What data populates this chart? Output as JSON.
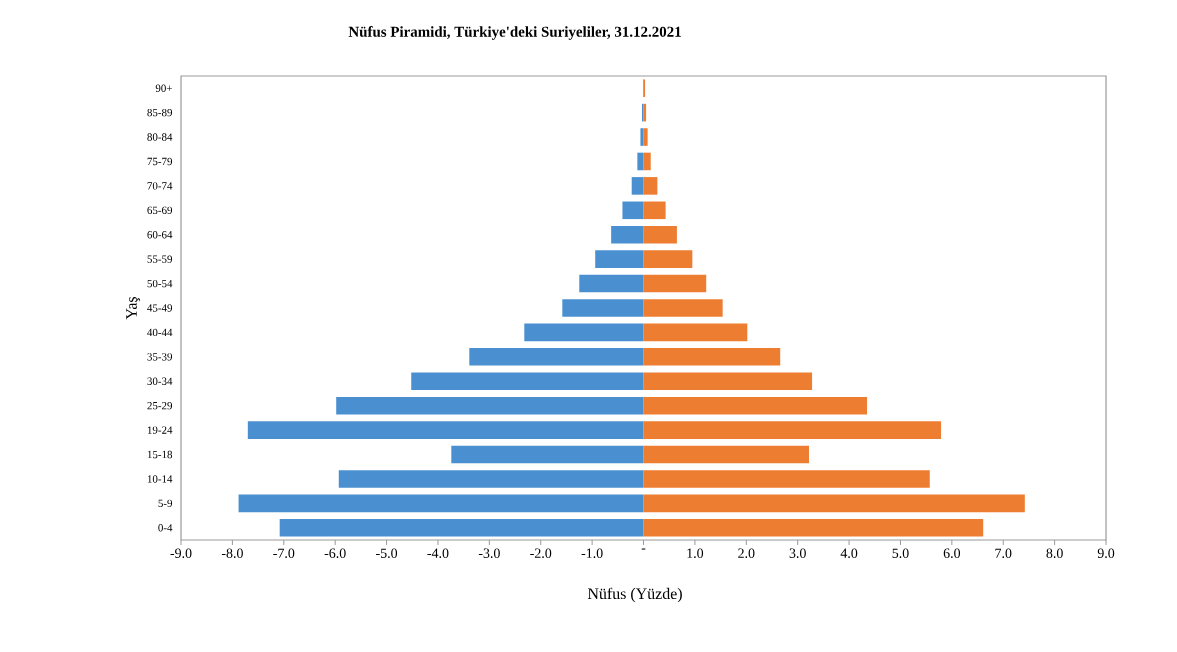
{
  "chart_data": {
    "type": "bar",
    "stacked": true,
    "orientation": "horizontal",
    "title": "Nüfus Piramidi, Türkiye'deki Suriyeliler, 31.12.2021",
    "xlabel": "Nüfus (Yüzde)",
    "ylabel": "Yaş",
    "categories": [
      "90+",
      "85-89",
      "80-84",
      "75-79",
      "70-74",
      "65-69",
      "60-64",
      "55-59",
      "50-54",
      "45-49",
      "40-44",
      "35-39",
      "30-34",
      "25-29",
      "19-24",
      "15-18",
      "10-14",
      "5-9",
      "0-4"
    ],
    "series": [
      {
        "color": "#4a90d0",
        "values": [
          -0.01,
          -0.03,
          -0.06,
          -0.12,
          -0.23,
          -0.41,
          -0.63,
          -0.94,
          -1.25,
          -1.58,
          -2.32,
          -3.39,
          -4.52,
          -5.98,
          -7.7,
          -3.74,
          -5.93,
          -7.88,
          -7.08
        ]
      },
      {
        "color": "#ed7d31",
        "values": [
          0.03,
          0.05,
          0.08,
          0.14,
          0.27,
          0.43,
          0.65,
          0.95,
          1.22,
          1.54,
          2.02,
          2.66,
          3.28,
          4.35,
          5.79,
          3.22,
          5.57,
          7.42,
          6.61
        ]
      }
    ],
    "xlim": [
      -9,
      9
    ],
    "xticks": [
      {
        "value": -9,
        "label": "-9.0"
      },
      {
        "value": -8,
        "label": "-8.0"
      },
      {
        "value": -7,
        "label": "-7.0"
      },
      {
        "value": -6,
        "label": "-6.0"
      },
      {
        "value": -5,
        "label": "-5.0"
      },
      {
        "value": -4,
        "label": "-4.0"
      },
      {
        "value": -3,
        "label": "-3.0"
      },
      {
        "value": -2,
        "label": "-2.0"
      },
      {
        "value": -1,
        "label": "-1.0"
      },
      {
        "value": 0,
        "label": "-"
      },
      {
        "value": 1,
        "label": "1.0"
      },
      {
        "value": 2,
        "label": "2.0"
      },
      {
        "value": 3,
        "label": "3.0"
      },
      {
        "value": 4,
        "label": "4.0"
      },
      {
        "value": 5,
        "label": "5.0"
      },
      {
        "value": 6,
        "label": "6.0"
      },
      {
        "value": 7,
        "label": "7.0"
      },
      {
        "value": 8,
        "label": "8.0"
      },
      {
        "value": 9,
        "label": "9.0"
      }
    ]
  }
}
